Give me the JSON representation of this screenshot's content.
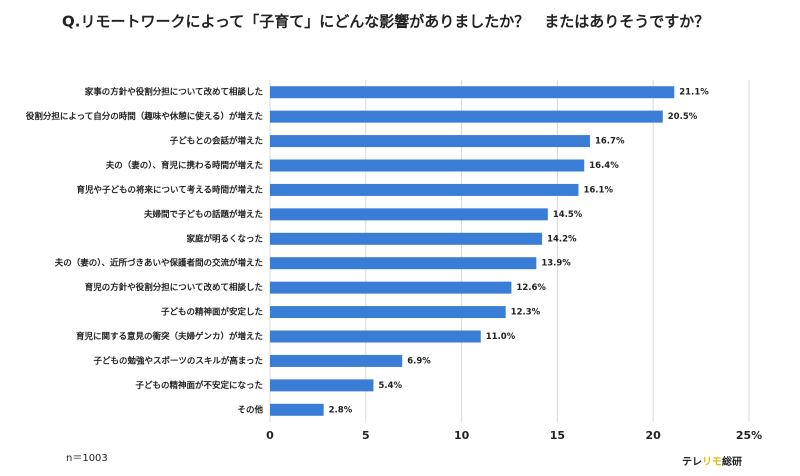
{
  "chart_data": {
    "type": "hbar",
    "title": "Q.リモートワークによって「子育て」にどんな影響がありましたか？　またはありそうですか？",
    "categories": [
      "家事の方針や役割分担について改めて相談した",
      "役割分担によって自分の時間（趣味や休憩に使える）が増えた",
      "子どもとの会話が増えた",
      "夫の（妻の）、育児に携わる時間が増えた",
      "育児や子どもの将来について考える時間が増えた",
      "夫婦間で子どもの話題が増えた",
      "家庭が明るくなった",
      "夫の（妻の）、近所づきあいや保護者間の交流が増えた",
      "育児の方針や役割分担について改めて相談した",
      "子どもの精神面が安定した",
      "育児に関する意見の衝突（夫婦ゲンカ）が増えた",
      "子どもの勉強やスポーツのスキルが高まった",
      "子どもの精神面が不安定になった",
      "その他"
    ],
    "values": [
      21.1,
      20.5,
      16.7,
      16.4,
      16.1,
      14.5,
      14.2,
      13.9,
      12.6,
      12.3,
      11.0,
      6.9,
      5.4,
      2.8
    ],
    "value_labels": [
      "21.1%",
      "20.5%",
      "16.7%",
      "16.4%",
      "16.1%",
      "14.5%",
      "14.2%",
      "13.9%",
      "12.6%",
      "12.3%",
      "11.0%",
      "6.9%",
      "5.4%",
      "2.8%"
    ],
    "color": "#3a7dd6",
    "xlim": [
      0,
      25
    ],
    "xticks": [
      0,
      5,
      10,
      15,
      20,
      {
        "value": 25,
        "label": "25%"
      }
    ],
    "grid": true,
    "note": "n＝1003",
    "brand": [
      "テレ",
      "リモ",
      "総研"
    ]
  }
}
